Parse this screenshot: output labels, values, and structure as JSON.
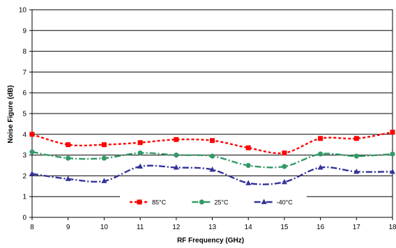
{
  "chart_data": {
    "type": "line",
    "title": "",
    "xlabel": "RF Frequency (GHz)",
    "ylabel": "Noise Figure (dB)",
    "x": [
      8,
      9,
      10,
      11,
      12,
      13,
      14,
      15,
      16,
      17,
      18
    ],
    "xlim": [
      8,
      18
    ],
    "ylim": [
      0,
      10
    ],
    "x_ticks": [
      "8",
      "9",
      "10",
      "11",
      "12",
      "13",
      "14",
      "15",
      "16",
      "17",
      "18"
    ],
    "y_ticks": [
      "0",
      "1",
      "2",
      "3",
      "4",
      "5",
      "6",
      "7",
      "8",
      "9",
      "10"
    ],
    "grid": "horizontal",
    "legend_position": "bottom-center",
    "series": [
      {
        "name": "85°C",
        "color": "#ff0000",
        "marker": "square",
        "line_style": "dotted",
        "values": [
          4.0,
          3.5,
          3.5,
          3.6,
          3.75,
          3.7,
          3.35,
          3.1,
          3.8,
          3.8,
          4.1
        ]
      },
      {
        "name": "25°C",
        "color": "#339966",
        "marker": "circle",
        "line_style": "dash-dot",
        "values": [
          3.15,
          2.85,
          2.85,
          3.1,
          3.0,
          2.95,
          2.5,
          2.45,
          3.05,
          2.95,
          3.05
        ]
      },
      {
        "name": "-40°C",
        "color": "#333399",
        "marker": "triangle",
        "line_style": "dash-dot",
        "values": [
          2.1,
          1.85,
          1.75,
          2.45,
          2.4,
          2.3,
          1.65,
          1.7,
          2.4,
          2.2,
          2.2
        ]
      }
    ]
  }
}
